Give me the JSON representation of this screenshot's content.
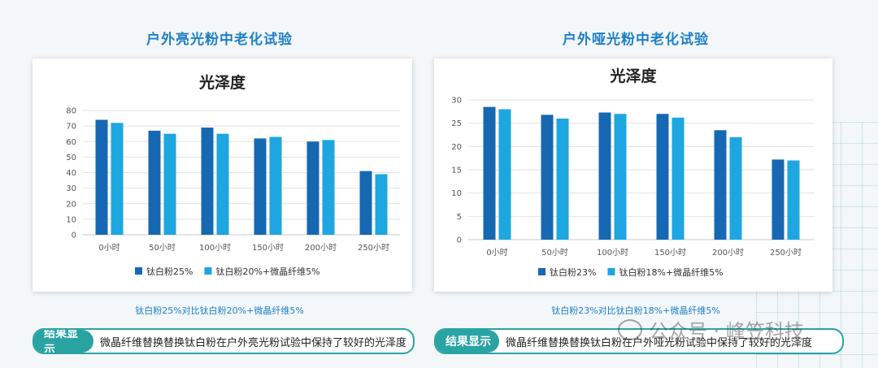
{
  "panels": [
    {
      "section_title": "户外亮光粉中老化试验",
      "caption": "钛白粉25%对比钛白粉20%+微晶纤维5%",
      "result_tag": "结果显示",
      "result_text": "微晶纤维替换替换钛白粉在户外亮光粉试验中保持了较好的光泽度"
    },
    {
      "section_title": "户外哑光粉中老化试验",
      "caption": "钛白粉23%对比钛白粉18%+微晶纤维5%",
      "result_tag": "结果显示",
      "result_text": "微晶纤维替换替换钛白粉在户外哑光粉试验中保持了较好的光泽度"
    }
  ],
  "watermark": "公众号 · 峰笠科技",
  "colors": {
    "dark_blue": "#1768b3",
    "light_blue": "#1ea6e0",
    "teal": "#2aa3a3"
  },
  "chart_data": [
    {
      "type": "bar",
      "title": "光泽度",
      "categories": [
        "0小时",
        "50小时",
        "100小时",
        "150小时",
        "200小时",
        "250小时"
      ],
      "ylim": [
        0,
        80
      ],
      "yticks": [
        0,
        10,
        20,
        30,
        40,
        50,
        60,
        70,
        80
      ],
      "grid": true,
      "legend": "bottom",
      "series": [
        {
          "name": "钛白粉25%",
          "color": "#1768b3",
          "values": [
            74,
            67,
            69,
            62,
            60,
            41
          ]
        },
        {
          "name": "钛白粉20%+微晶纤维5%",
          "color": "#1ea6e0",
          "values": [
            72,
            65,
            65,
            63,
            61,
            39
          ]
        }
      ]
    },
    {
      "type": "bar",
      "title": "光泽度",
      "categories": [
        "0小时",
        "50小时",
        "100小时",
        "150小时",
        "200小时",
        "250小时"
      ],
      "ylim": [
        0,
        30
      ],
      "yticks": [
        0,
        5,
        10,
        15,
        20,
        25,
        30
      ],
      "grid": true,
      "legend": "bottom",
      "series": [
        {
          "name": "钛白粉23%",
          "color": "#1768b3",
          "values": [
            28.5,
            26.8,
            27.3,
            27.0,
            23.5,
            17.2
          ]
        },
        {
          "name": "钛白粉18%+微晶纤维5%",
          "color": "#1ea6e0",
          "values": [
            28.0,
            26.0,
            27.0,
            26.2,
            22.0,
            17.0
          ]
        }
      ]
    }
  ]
}
